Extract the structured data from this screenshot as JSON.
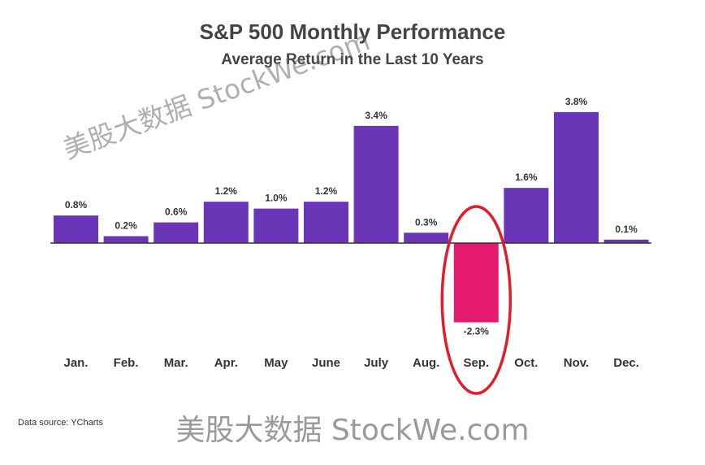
{
  "chart_data": {
    "type": "bar",
    "title": "S&P 500 Monthly Performance",
    "subtitle": "Average Return in the Last 10 Years",
    "categories": [
      "Jan.",
      "Feb.",
      "Mar.",
      "Apr.",
      "May",
      "June",
      "July",
      "Aug.",
      "Sep.",
      "Oct.",
      "Nov.",
      "Dec."
    ],
    "values": [
      0.8,
      0.2,
      0.6,
      1.2,
      1.0,
      1.2,
      3.4,
      0.3,
      -2.3,
      1.6,
      3.8,
      0.1
    ],
    "labels": [
      "0.8%",
      "0.2%",
      "0.6%",
      "1.2%",
      "1.0%",
      "1.2%",
      "3.4%",
      "0.3%",
      "-2.3%",
      "1.6%",
      "3.8%",
      "0.1%"
    ],
    "colors": {
      "positive": "#6b35b8",
      "negative": "#e61a6e",
      "highlight_ring": "#e01d2a"
    },
    "highlighted_category": "Sep.",
    "grid": false
  },
  "source": "Data source: YCharts",
  "watermarks": {
    "diagonal": "美股大数据 StockWe.com",
    "bottom": "美股大数据 StockWe.com"
  }
}
